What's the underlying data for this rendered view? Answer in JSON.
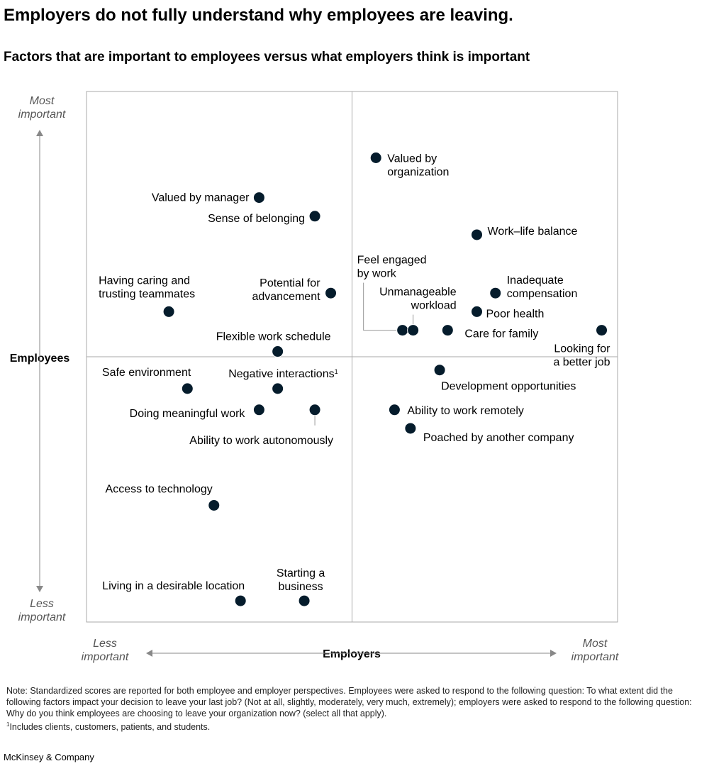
{
  "title": "Employers do not fully understand why employees are leaving.",
  "subtitle": "Factors that are important to employees versus what employers think is important",
  "note": "Note: Standardized scores are reported for both employee and employer perspectives. Employees were asked to respond to the following question: To what extent did the following factors impact your decision to leave your last job? (Not at all, slightly, moderately, very much, extremely); employers were asked to respond to the following question: Why do you think employees are choosing to leave your organization now? (select all that apply).",
  "footnote_mark": "1",
  "footnote": "Includes clients, customers, patients, and students.",
  "source": "McKinsey & Company",
  "chart_data": {
    "type": "scatter",
    "xlabel": "Employers",
    "ylabel": "Employees",
    "x_low_label": [
      "Less",
      "important"
    ],
    "x_high_label": [
      "Most",
      "important"
    ],
    "y_low_label": [
      "Less",
      "important"
    ],
    "y_high_label": [
      "Most",
      "important"
    ],
    "xlim": [
      -1,
      1
    ],
    "ylim": [
      -1,
      1
    ],
    "quadrant_lines": true,
    "point_color": "#051c2c",
    "points": [
      {
        "label": [
          "Valued by",
          "organization"
        ],
        "x": 0.09,
        "y": 0.75
      },
      {
        "label": [
          "Valued by manager"
        ],
        "x": -0.35,
        "y": 0.6
      },
      {
        "label": [
          "Sense of belonging"
        ],
        "x": -0.14,
        "y": 0.53
      },
      {
        "label": [
          "Work–life balance"
        ],
        "x": 0.47,
        "y": 0.46
      },
      {
        "label": [
          "Potential for",
          "advancement"
        ],
        "x": -0.08,
        "y": 0.24
      },
      {
        "label": [
          "Inadequate",
          "compensation"
        ],
        "x": 0.54,
        "y": 0.24
      },
      {
        "label": [
          "Having caring and",
          "trusting teammates"
        ],
        "x": -0.69,
        "y": 0.17
      },
      {
        "label": [
          "Poor health"
        ],
        "x": 0.47,
        "y": 0.17
      },
      {
        "label": [
          "Feel engaged",
          "by work"
        ],
        "x": 0.19,
        "y": 0.1
      },
      {
        "label": [
          "Unmanageable",
          "workload"
        ],
        "x": 0.23,
        "y": 0.1
      },
      {
        "label": [
          "Care for family"
        ],
        "x": 0.36,
        "y": 0.1
      },
      {
        "label": [
          "Looking for",
          "a better job"
        ],
        "x": 0.94,
        "y": 0.1
      },
      {
        "label": [
          "Flexible work schedule"
        ],
        "x": -0.28,
        "y": 0.02
      },
      {
        "label": [
          "Development opportunities"
        ],
        "x": 0.33,
        "y": -0.05
      },
      {
        "label": [
          "Safe environment"
        ],
        "x": -0.62,
        "y": -0.12
      },
      {
        "label": [
          "Negative interactions"
        ],
        "sup": "1",
        "x": -0.28,
        "y": -0.12
      },
      {
        "label": [
          "Doing meaningful work"
        ],
        "x": -0.35,
        "y": -0.2
      },
      {
        "label": [
          "Ability to work autonomously"
        ],
        "x": -0.14,
        "y": -0.2
      },
      {
        "label": [
          "Ability to work remotely"
        ],
        "x": 0.16,
        "y": -0.2
      },
      {
        "label": [
          "Poached by another company"
        ],
        "x": 0.22,
        "y": -0.27
      },
      {
        "label": [
          "Access to technology"
        ],
        "x": -0.52,
        "y": -0.56
      },
      {
        "label": [
          "Living in a desirable location"
        ],
        "x": -0.42,
        "y": -0.92
      },
      {
        "label": [
          "Starting a",
          "business"
        ],
        "x": -0.18,
        "y": -0.92
      }
    ]
  }
}
